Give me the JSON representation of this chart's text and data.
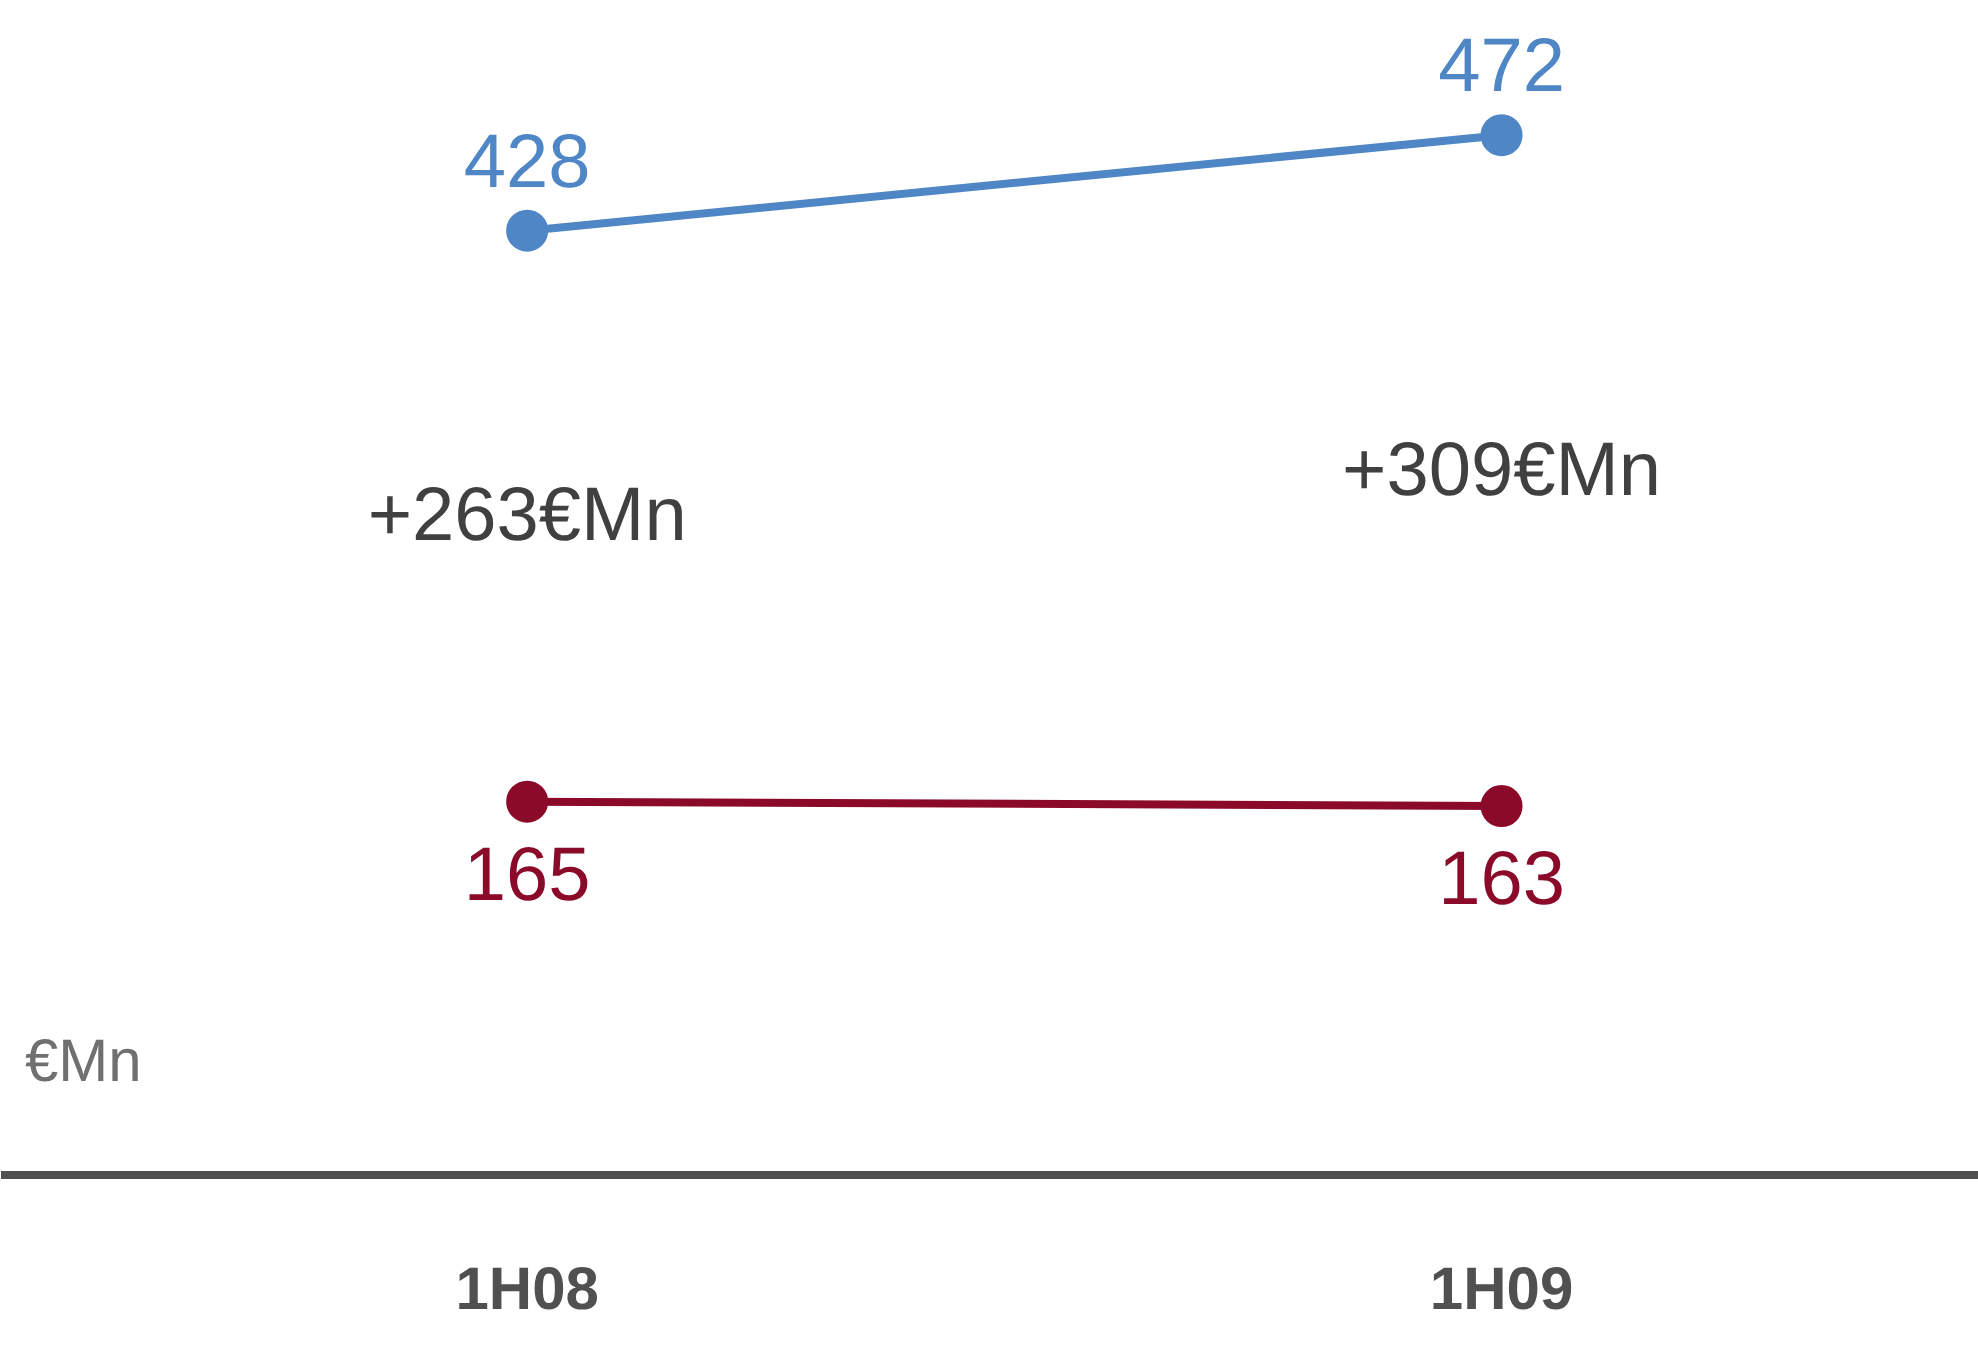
{
  "chart_data": {
    "type": "line",
    "categories": [
      "1H08",
      "1H09"
    ],
    "data_labels": true,
    "marker": "circle",
    "grid": false,
    "series": [
      {
        "color": "#4f86c6",
        "values": [
          428,
          472
        ]
      },
      {
        "color": "#8b0a2a",
        "values": [
          165,
          163
        ]
      }
    ],
    "annotations": [
      "+263€Mn",
      "+309€Mn",
      "€Mn"
    ]
  }
}
